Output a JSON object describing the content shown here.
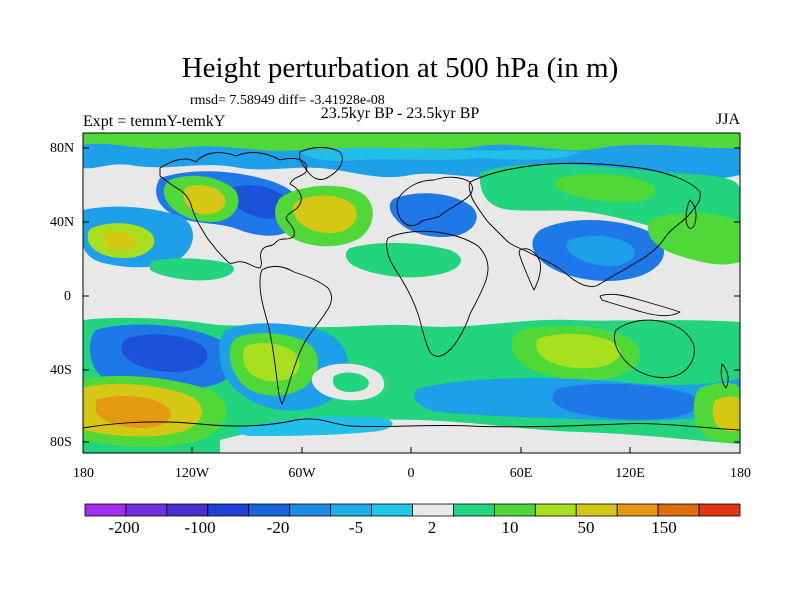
{
  "title": "Height perturbation at 500 hPa (in m)",
  "stats": "rmsd= 7.58949 diff= -3.41928e-08",
  "subtitle": "23.5kyr BP - 23.5kyr BP",
  "expt": "Expt = temmY-temkY",
  "season": "JJA",
  "colors": {
    "lvl_m5": "#f000f8",
    "lvl_m4": "#a020f0",
    "lvl_m3": "#6a14d4",
    "lvl_m2": "#3434c8",
    "lvl_m1": "#1c52d8",
    "lvl_0": "#1e78e8",
    "lvl_1": "#1ea0e8",
    "lvl_2": "#22c0e8",
    "neutral": "#e8e8e8",
    "pos_1": "#22d47e",
    "pos_2": "#50d838",
    "pos_3": "#a8e020",
    "pos_4": "#d4c814",
    "pos_5": "#e49a10",
    "pos_6": "#e06c10",
    "pos_7": "#e03414"
  },
  "axes": {
    "lat_ticks": [
      "80N",
      "40N",
      "0",
      "40S",
      "80S"
    ],
    "lon_ticks": [
      "180",
      "120W",
      "60W",
      "0",
      "60E",
      "120E",
      "180"
    ]
  },
  "colorbar": {
    "labels": [
      "-200",
      "-100",
      "-20",
      "-5",
      "2",
      "10",
      "50",
      "150"
    ],
    "colors": [
      "#a030f0",
      "#7030e0",
      "#4830d0",
      "#2040d8",
      "#1a64e0",
      "#1e8ae8",
      "#1eaee8",
      "#20c8e8",
      "#e8e8e8",
      "#22d47e",
      "#50d838",
      "#a8e020",
      "#d4c814",
      "#e49a10",
      "#e06c10",
      "#e03414"
    ]
  }
}
